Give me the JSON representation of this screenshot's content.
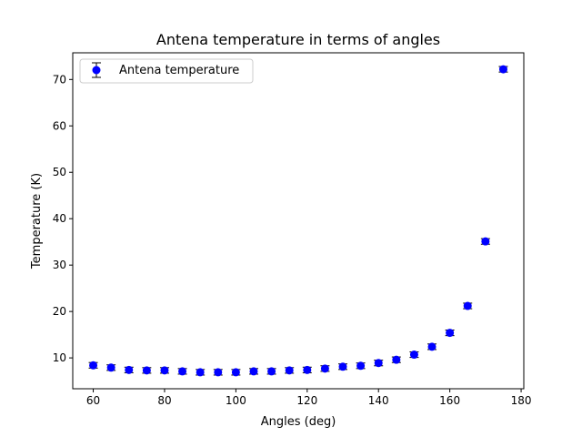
{
  "chart_data": {
    "type": "scatter",
    "title": "Antena temperature in terms of angles",
    "xlabel": "Angles (deg)",
    "ylabel": "Temperature (K)",
    "xlim": [
      54.25,
      180.75
    ],
    "ylim": [
      3.35,
      75.75
    ],
    "xticks": [
      60,
      80,
      100,
      120,
      140,
      160,
      180
    ],
    "yticks": [
      10,
      20,
      30,
      40,
      50,
      60,
      70
    ],
    "grid": false,
    "legend_position": "top-left",
    "series": [
      {
        "name": "Antena temperature",
        "color": "#0000ff",
        "errorbar_color": "#000000",
        "marker": "circle",
        "x": [
          60,
          65,
          70,
          75,
          80,
          85,
          90,
          95,
          100,
          105,
          110,
          115,
          120,
          125,
          130,
          135,
          140,
          145,
          150,
          155,
          160,
          165,
          170,
          175
        ],
        "y": [
          8.4,
          7.9,
          7.4,
          7.3,
          7.3,
          7.1,
          6.9,
          6.9,
          6.9,
          7.1,
          7.1,
          7.3,
          7.4,
          7.7,
          8.1,
          8.3,
          8.9,
          9.6,
          10.7,
          12.4,
          15.4,
          21.2,
          35.1,
          72.2
        ],
        "yerr": [
          0.6,
          0.6,
          0.6,
          0.6,
          0.6,
          0.6,
          0.6,
          0.6,
          0.6,
          0.6,
          0.6,
          0.6,
          0.6,
          0.6,
          0.6,
          0.6,
          0.6,
          0.6,
          0.6,
          0.6,
          0.6,
          0.6,
          0.6,
          0.6
        ]
      }
    ]
  }
}
